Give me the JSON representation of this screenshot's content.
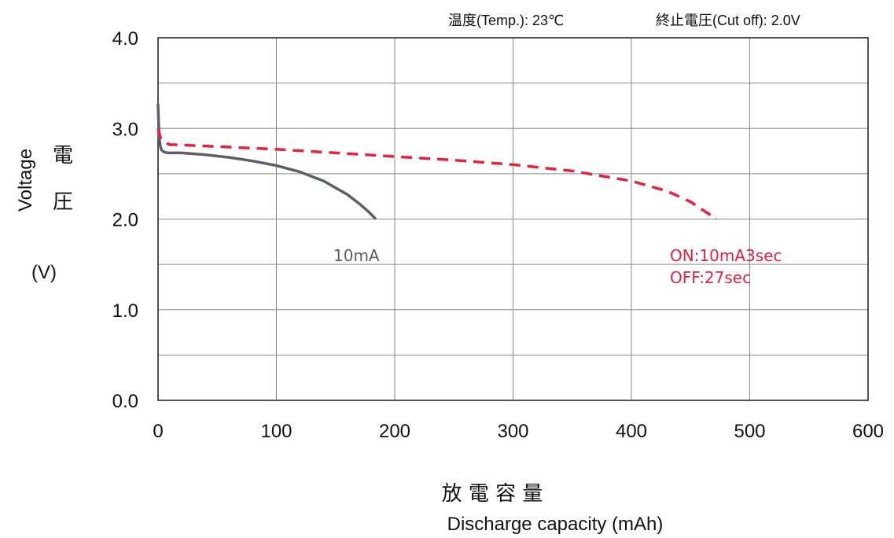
{
  "conditions": {
    "temperature": "温度(Temp.): 23℃",
    "cutoff": "終止電圧(Cut off): 2.0V"
  },
  "colors": {
    "continuous": "#5a6068",
    "pulse": "#e8203c",
    "grid": "#8a8a8a"
  },
  "chart_data": {
    "type": "line",
    "title": "",
    "xlabel_jp": "放 電 容 量",
    "xlabel": "Discharge capacity (mAh)",
    "ylabel": "Voltage",
    "ylabel_jp_1": "電",
    "ylabel_jp_2": "圧",
    "ylabel_unit": "(V)",
    "xlim": [
      0,
      600
    ],
    "ylim": [
      0.0,
      4.0
    ],
    "x_ticks": [
      "0",
      "100",
      "200",
      "300",
      "400",
      "500",
      "600"
    ],
    "y_ticks": [
      "0.0",
      "1.0",
      "2.0",
      "3.0",
      "4.0"
    ],
    "grid": true,
    "series": [
      {
        "name": "10mA",
        "style": "solid",
        "x": [
          0,
          0.5,
          1,
          2,
          3,
          5,
          8,
          10,
          20,
          40,
          60,
          80,
          100,
          120,
          140,
          160,
          170,
          178,
          184
        ],
        "y": [
          3.27,
          3.05,
          2.9,
          2.8,
          2.76,
          2.74,
          2.73,
          2.73,
          2.73,
          2.71,
          2.68,
          2.64,
          2.59,
          2.52,
          2.42,
          2.27,
          2.17,
          2.08,
          2.0
        ]
      },
      {
        "name": "ON:10mA3sec",
        "name_line2": "OFF:27sec",
        "style": "dashed",
        "x": [
          0,
          2,
          5,
          10,
          15,
          50,
          100,
          150,
          200,
          250,
          300,
          350,
          400,
          430,
          450,
          465,
          472
        ],
        "y": [
          3.0,
          2.9,
          2.85,
          2.82,
          2.82,
          2.8,
          2.77,
          2.73,
          2.69,
          2.65,
          2.6,
          2.53,
          2.42,
          2.31,
          2.19,
          2.06,
          2.0
        ]
      }
    ]
  }
}
